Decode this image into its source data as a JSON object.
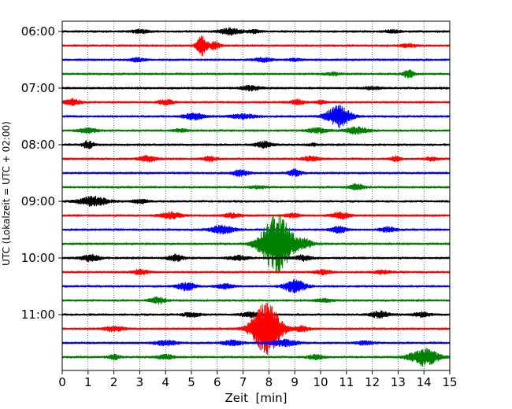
{
  "chart_data": {
    "type": "line",
    "title": "",
    "xlabel": "Zeit  [min]",
    "ylabel": "UTC (Lokalzeit = UTC + 02:00)",
    "xlim": [
      0,
      15
    ],
    "x_ticks": [
      0,
      1,
      2,
      3,
      4,
      5,
      6,
      7,
      8,
      9,
      10,
      11,
      12,
      13,
      14,
      15
    ],
    "x_tick_labels": [
      "0",
      "1",
      "2",
      "3",
      "4",
      "5",
      "6",
      "7",
      "8",
      "9",
      "10",
      "11",
      "12",
      "13",
      "14",
      "15"
    ],
    "y_tick_labels": [
      {
        "label": "06:00",
        "trace": 0
      },
      {
        "label": "07:00",
        "trace": 4
      },
      {
        "label": "08:00",
        "trace": 8
      },
      {
        "label": "09:00",
        "trace": 12
      },
      {
        "label": "10:00",
        "trace": 16
      },
      {
        "label": "11:00",
        "trace": 20
      }
    ],
    "trace_interval_minutes": 15,
    "grid": {
      "x": true,
      "style": "dotted"
    },
    "colors_cycle": [
      "#000000",
      "#ff0000",
      "#0000ff",
      "#008000"
    ],
    "traces": [
      {
        "start": "06:00",
        "color": "#000000",
        "base": 1,
        "events": [
          {
            "t": 3.0,
            "amp": 2,
            "width": 0.35
          },
          {
            "t": 6.5,
            "amp": 4,
            "width": 0.4
          },
          {
            "t": 7.4,
            "amp": 2,
            "width": 0.25
          },
          {
            "t": 12.8,
            "amp": 1.5,
            "width": 0.3
          }
        ]
      },
      {
        "start": "06:15",
        "color": "#ff0000",
        "base": 1,
        "events": [
          {
            "t": 5.4,
            "amp": 13,
            "width": 0.2
          },
          {
            "t": 5.9,
            "amp": 5,
            "width": 0.2
          },
          {
            "t": 13.4,
            "amp": 2,
            "width": 0.3
          }
        ]
      },
      {
        "start": "06:30",
        "color": "#0000ff",
        "base": 1,
        "events": [
          {
            "t": 2.9,
            "amp": 2,
            "width": 0.3
          },
          {
            "t": 7.8,
            "amp": 2.5,
            "width": 0.35
          },
          {
            "t": 9.0,
            "amp": 1.5,
            "width": 0.25
          }
        ]
      },
      {
        "start": "06:45",
        "color": "#008000",
        "base": 1,
        "events": [
          {
            "t": 13.4,
            "amp": 5,
            "width": 0.2
          },
          {
            "t": 10.5,
            "amp": 1.5,
            "width": 0.3
          }
        ]
      },
      {
        "start": "07:00",
        "color": "#000000",
        "base": 1,
        "events": [
          {
            "t": 7.3,
            "amp": 3,
            "width": 0.35
          },
          {
            "t": 12.0,
            "amp": 1.5,
            "width": 0.3
          }
        ]
      },
      {
        "start": "07:15",
        "color": "#ff0000",
        "base": 1,
        "events": [
          {
            "t": 0.4,
            "amp": 4,
            "width": 0.3
          },
          {
            "t": 4.0,
            "amp": 3,
            "width": 0.3
          },
          {
            "t": 9.1,
            "amp": 3,
            "width": 0.3
          },
          {
            "t": 10.0,
            "amp": 2,
            "width": 0.2
          }
        ]
      },
      {
        "start": "07:30",
        "color": "#0000ff",
        "base": 1,
        "events": [
          {
            "t": 5.1,
            "amp": 4,
            "width": 0.4
          },
          {
            "t": 7.0,
            "amp": 2.5,
            "width": 0.5
          },
          {
            "t": 10.7,
            "amp": 14,
            "width": 0.45
          }
        ]
      },
      {
        "start": "07:45",
        "color": "#008000",
        "base": 1,
        "events": [
          {
            "t": 1.0,
            "amp": 3,
            "width": 0.35
          },
          {
            "t": 4.6,
            "amp": 2,
            "width": 0.3
          },
          {
            "t": 9.9,
            "amp": 3,
            "width": 0.4
          },
          {
            "t": 11.4,
            "amp": 4,
            "width": 0.45
          }
        ]
      },
      {
        "start": "08:00",
        "color": "#000000",
        "base": 1,
        "events": [
          {
            "t": 1.0,
            "amp": 5,
            "width": 0.2
          },
          {
            "t": 7.8,
            "amp": 4,
            "width": 0.3
          },
          {
            "t": 9.7,
            "amp": 1.5,
            "width": 0.2
          }
        ]
      },
      {
        "start": "08:15",
        "color": "#ff0000",
        "base": 1,
        "events": [
          {
            "t": 3.3,
            "amp": 4,
            "width": 0.3
          },
          {
            "t": 5.7,
            "amp": 3,
            "width": 0.25
          },
          {
            "t": 9.6,
            "amp": 3,
            "width": 0.3
          },
          {
            "t": 12.9,
            "amp": 3,
            "width": 0.2
          },
          {
            "t": 14.3,
            "amp": 2,
            "width": 0.25
          }
        ]
      },
      {
        "start": "08:30",
        "color": "#0000ff",
        "base": 1,
        "events": [
          {
            "t": 6.9,
            "amp": 4,
            "width": 0.3
          },
          {
            "t": 9.0,
            "amp": 4,
            "width": 0.25
          }
        ]
      },
      {
        "start": "08:45",
        "color": "#008000",
        "base": 1,
        "events": [
          {
            "t": 11.4,
            "amp": 3.5,
            "width": 0.3
          },
          {
            "t": 7.6,
            "amp": 1.5,
            "width": 0.3
          }
        ]
      },
      {
        "start": "09:00",
        "color": "#000000",
        "base": 1,
        "events": [
          {
            "t": 1.2,
            "amp": 6,
            "width": 0.55
          },
          {
            "t": 3.0,
            "amp": 2.5,
            "width": 0.3
          }
        ]
      },
      {
        "start": "09:15",
        "color": "#ff0000",
        "base": 1,
        "events": [
          {
            "t": 4.2,
            "amp": 4,
            "width": 0.4
          },
          {
            "t": 6.6,
            "amp": 3,
            "width": 0.3
          },
          {
            "t": 10.8,
            "amp": 4,
            "width": 0.35
          },
          {
            "t": 8.9,
            "amp": 2.5,
            "width": 0.3
          }
        ]
      },
      {
        "start": "09:30",
        "color": "#0000ff",
        "base": 1,
        "events": [
          {
            "t": 6.2,
            "amp": 5,
            "width": 0.45
          },
          {
            "t": 10.7,
            "amp": 4,
            "width": 0.3
          },
          {
            "t": 12.6,
            "amp": 3,
            "width": 0.3
          }
        ]
      },
      {
        "start": "09:45",
        "color": "#008000",
        "base": 1,
        "events": [
          {
            "t": 8.3,
            "amp": 38,
            "width": 0.6
          },
          {
            "t": 9.4,
            "amp": 5,
            "width": 0.3
          }
        ]
      },
      {
        "start": "10:00",
        "color": "#000000",
        "base": 1,
        "events": [
          {
            "t": 1.1,
            "amp": 4,
            "width": 0.35
          },
          {
            "t": 4.4,
            "amp": 4,
            "width": 0.3
          },
          {
            "t": 6.8,
            "amp": 3,
            "width": 0.35
          },
          {
            "t": 9.3,
            "amp": 3,
            "width": 0.35
          }
        ]
      },
      {
        "start": "10:15",
        "color": "#ff0000",
        "base": 1,
        "events": [
          {
            "t": 3.0,
            "amp": 3,
            "width": 0.3
          },
          {
            "t": 10.1,
            "amp": 2.5,
            "width": 0.3
          },
          {
            "t": 12.4,
            "amp": 2,
            "width": 0.3
          }
        ]
      },
      {
        "start": "10:30",
        "color": "#0000ff",
        "base": 1,
        "events": [
          {
            "t": 4.8,
            "amp": 5,
            "width": 0.35
          },
          {
            "t": 6.3,
            "amp": 3,
            "width": 0.3
          },
          {
            "t": 9.0,
            "amp": 8,
            "width": 0.4
          }
        ]
      },
      {
        "start": "10:45",
        "color": "#008000",
        "base": 1,
        "events": [
          {
            "t": 3.7,
            "amp": 4,
            "width": 0.3
          },
          {
            "t": 10.1,
            "amp": 2,
            "width": 0.35
          }
        ]
      },
      {
        "start": "11:00",
        "color": "#000000",
        "base": 1,
        "events": [
          {
            "t": 5.0,
            "amp": 3,
            "width": 0.3
          },
          {
            "t": 7.3,
            "amp": 3,
            "width": 0.35
          },
          {
            "t": 12.3,
            "amp": 4,
            "width": 0.35
          },
          {
            "t": 13.9,
            "amp": 3,
            "width": 0.3
          }
        ]
      },
      {
        "start": "11:15",
        "color": "#ff0000",
        "base": 1,
        "events": [
          {
            "t": 2.0,
            "amp": 3,
            "width": 0.4
          },
          {
            "t": 7.9,
            "amp": 33,
            "width": 0.55
          },
          {
            "t": 9.3,
            "amp": 3,
            "width": 0.3
          }
        ]
      },
      {
        "start": "11:30",
        "color": "#0000ff",
        "base": 1,
        "events": [
          {
            "t": 4.0,
            "amp": 3.5,
            "width": 0.4
          },
          {
            "t": 6.6,
            "amp": 3,
            "width": 0.4
          },
          {
            "t": 8.6,
            "amp": 4,
            "width": 0.5
          },
          {
            "t": 11.7,
            "amp": 2.5,
            "width": 0.3
          }
        ]
      },
      {
        "start": "11:45",
        "color": "#008000",
        "base": 1,
        "events": [
          {
            "t": 2.0,
            "amp": 3,
            "width": 0.2
          },
          {
            "t": 4.0,
            "amp": 3,
            "width": 0.3
          },
          {
            "t": 9.8,
            "amp": 2.5,
            "width": 0.3
          },
          {
            "t": 14.0,
            "amp": 11,
            "width": 0.55
          }
        ]
      }
    ]
  }
}
